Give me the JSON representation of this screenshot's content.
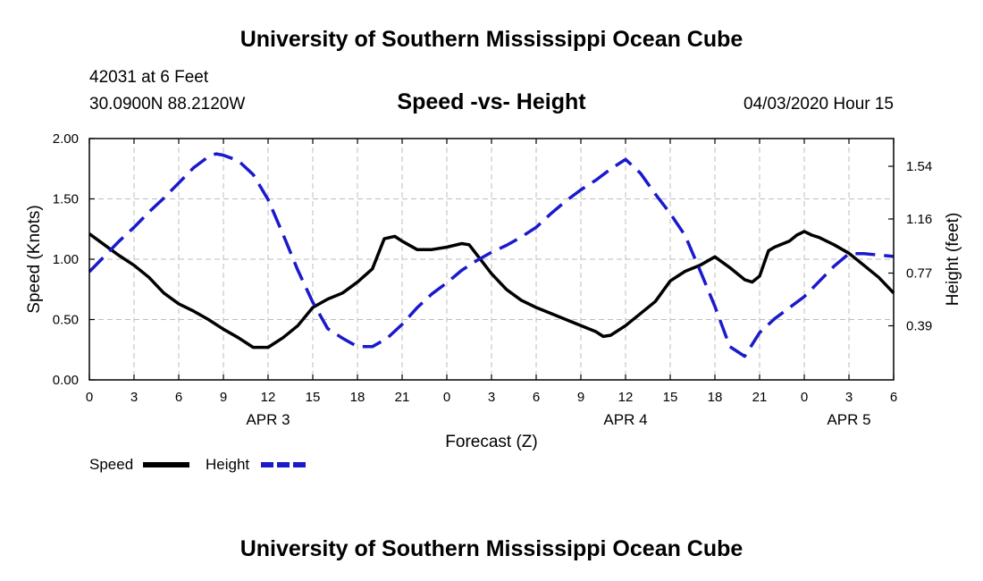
{
  "header": {
    "title": "University of Southern Mississippi Ocean Cube"
  },
  "station": {
    "id_line": "42031 at 6 Feet",
    "coords": "30.0900N 88.2120W"
  },
  "chart_title": "Speed -vs- Height",
  "datetime": "04/03/2020 Hour 15",
  "footer": {
    "title": "University of Southern Mississippi Ocean Cube"
  },
  "legend": {
    "speed_label": "Speed",
    "height_label": "Height"
  },
  "colors": {
    "speed": "#000000",
    "height": "#1a1acc",
    "grid": "#bdbdbd"
  },
  "chart_data": {
    "type": "line",
    "title": "Speed -vs- Height",
    "xlabel": "Forecast (Z)",
    "ylabel": "Speed (Knots)",
    "y2label": "Height (feet)",
    "xlim": [
      0,
      54
    ],
    "ylim": [
      0,
      2.0
    ],
    "y2lim": [
      0.0,
      1.74
    ],
    "x_ticks": [
      0,
      3,
      6,
      9,
      12,
      15,
      18,
      21,
      24,
      27,
      30,
      33,
      36,
      39,
      42,
      45,
      48,
      51,
      54
    ],
    "x_tick_labels": [
      "0",
      "3",
      "6",
      "9",
      "12",
      "15",
      "18",
      "21",
      "0",
      "3",
      "6",
      "9",
      "12",
      "15",
      "18",
      "21",
      "0",
      "3",
      "6"
    ],
    "y_ticks": [
      0,
      0.5,
      1.0,
      1.5,
      2.0
    ],
    "y_tick_labels": [
      "0.00",
      "0.50",
      "1.00",
      "1.50",
      "2.00"
    ],
    "y2_ticks": [
      0.39,
      0.77,
      1.16,
      1.54
    ],
    "y2_tick_labels": [
      "0.39",
      "0.77",
      "1.16",
      "1.54"
    ],
    "date_labels": [
      {
        "x": 12,
        "label": "APR 3"
      },
      {
        "x": 36,
        "label": "APR 4"
      },
      {
        "x": 51,
        "label": "APR 5"
      }
    ],
    "grid": true,
    "series": [
      {
        "name": "Speed",
        "axis": "left",
        "style": "solid",
        "x": [
          0,
          1,
          2,
          3,
          4,
          5,
          6,
          7,
          8,
          9,
          10,
          11,
          12,
          13,
          14,
          15,
          16,
          17,
          18,
          19,
          19.8,
          20.5,
          21,
          22,
          23,
          24,
          25,
          25.5,
          26,
          27,
          28,
          29,
          30,
          31,
          32,
          33,
          34,
          34.5,
          35,
          36,
          37,
          38,
          39,
          40,
          41,
          42,
          43,
          44,
          44.5,
          45,
          45.6,
          46,
          47,
          47.5,
          48,
          48.5,
          49,
          50,
          51,
          52,
          53,
          54
        ],
        "values": [
          1.21,
          1.12,
          1.03,
          0.95,
          0.85,
          0.72,
          0.63,
          0.57,
          0.5,
          0.42,
          0.35,
          0.27,
          0.27,
          0.35,
          0.45,
          0.6,
          0.67,
          0.72,
          0.81,
          0.92,
          1.17,
          1.19,
          1.15,
          1.08,
          1.08,
          1.1,
          1.13,
          1.12,
          1.04,
          0.88,
          0.75,
          0.66,
          0.6,
          0.55,
          0.5,
          0.45,
          0.4,
          0.36,
          0.37,
          0.45,
          0.55,
          0.65,
          0.82,
          0.9,
          0.95,
          1.02,
          0.93,
          0.83,
          0.81,
          0.86,
          1.07,
          1.1,
          1.15,
          1.2,
          1.23,
          1.2,
          1.18,
          1.12,
          1.05,
          0.95,
          0.85,
          0.72
        ]
      },
      {
        "name": "Height",
        "axis": "right",
        "style": "dashed",
        "x": [
          0,
          1,
          2,
          3,
          4,
          5,
          6,
          7,
          8,
          8.5,
          9,
          10,
          11,
          12,
          13,
          14,
          15,
          16,
          17,
          18,
          19,
          20,
          21,
          22,
          23,
          24,
          25,
          26,
          27,
          28,
          29,
          30,
          31,
          32,
          33,
          34,
          35,
          36,
          37,
          38,
          39,
          40,
          41,
          42,
          43,
          44,
          45,
          46,
          47,
          48,
          49,
          50,
          51,
          52,
          53,
          54
        ],
        "values": [
          0.78,
          0.89,
          1.0,
          1.1,
          1.21,
          1.31,
          1.42,
          1.53,
          1.61,
          1.63,
          1.62,
          1.58,
          1.48,
          1.3,
          1.05,
          0.79,
          0.56,
          0.37,
          0.3,
          0.24,
          0.24,
          0.3,
          0.4,
          0.52,
          0.62,
          0.7,
          0.79,
          0.86,
          0.92,
          0.97,
          1.03,
          1.1,
          1.2,
          1.29,
          1.37,
          1.44,
          1.52,
          1.59,
          1.49,
          1.34,
          1.2,
          1.04,
          0.79,
          0.53,
          0.24,
          0.17,
          0.34,
          0.44,
          0.52,
          0.6,
          0.71,
          0.82,
          0.91,
          0.91,
          0.9,
          0.89
        ]
      }
    ]
  }
}
